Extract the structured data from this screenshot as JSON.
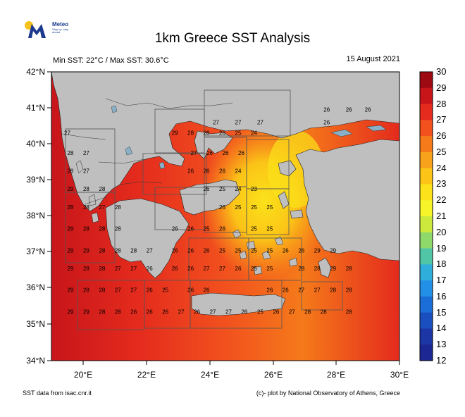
{
  "logo": {
    "name": "Meteo",
    "tagline": "Stay up, stay ahead",
    "icon": "meteo-m-logo"
  },
  "title": "1km Greece SST Analysis",
  "subtitle_left": "Min SST: 22°C / Max SST: 30.6°C",
  "date": "15 August 2021",
  "footer_left": "SST data from isac.cnr.it",
  "footer_right": "(c)- plot by National Observatory of Athens, Greece",
  "y_axis": {
    "labels": [
      "42°N",
      "41°N",
      "40°N",
      "39°N",
      "38°N",
      "37°N",
      "36°N",
      "35°N",
      "34°N"
    ],
    "range": [
      34,
      42
    ]
  },
  "x_axis": {
    "labels": [
      "20°E",
      "22°E",
      "24°E",
      "26°E",
      "28°E",
      "30°E"
    ],
    "range": [
      19,
      30
    ]
  },
  "colorbar": {
    "labels": [
      "30",
      "29",
      "28",
      "27",
      "26",
      "25",
      "24",
      "23",
      "22",
      "21",
      "20",
      "19",
      "18",
      "17",
      "16",
      "15",
      "14",
      "13",
      "12"
    ],
    "range": [
      12,
      30
    ],
    "colors": [
      "#9e0a12",
      "#c8151a",
      "#e42b1d",
      "#f2511e",
      "#f57a1a",
      "#f8a11a",
      "#fbc417",
      "#fbe21a",
      "#f5f52a",
      "#cdea3c",
      "#8fd96a",
      "#50c6a6",
      "#2faedb",
      "#2290e6",
      "#1b6ed8",
      "#1a4fc0",
      "#1c36a6",
      "#1d2793",
      "#1d1d84"
    ]
  },
  "land_color": "#bfbfbf",
  "sea_label_rows": [
    {
      "lat": 40.25,
      "cells": [
        {
          "lon": 19.5,
          "v": "27"
        },
        {
          "lon": 22.9,
          "v": "29"
        },
        {
          "lon": 23.4,
          "v": "28"
        },
        {
          "lon": 23.9,
          "v": "28"
        },
        {
          "lon": 24.4,
          "v": "26"
        },
        {
          "lon": 24.9,
          "v": "25"
        },
        {
          "lon": 25.4,
          "v": "24"
        }
      ]
    },
    {
      "lat": 40.55,
      "cells": [
        {
          "lon": 24.2,
          "v": "27"
        },
        {
          "lon": 24.9,
          "v": "27"
        },
        {
          "lon": 25.6,
          "v": "27"
        },
        {
          "lon": 27.7,
          "v": "26"
        }
      ]
    },
    {
      "lat": 40.9,
      "cells": [
        {
          "lon": 27.7,
          "v": "26"
        },
        {
          "lon": 28.4,
          "v": "26"
        },
        {
          "lon": 29.0,
          "v": "26"
        }
      ]
    },
    {
      "lat": 39.7,
      "cells": [
        {
          "lon": 19.6,
          "v": "28"
        },
        {
          "lon": 20.1,
          "v": "27"
        },
        {
          "lon": 23.5,
          "v": "27"
        },
        {
          "lon": 24.0,
          "v": "26"
        },
        {
          "lon": 24.5,
          "v": "26"
        },
        {
          "lon": 25.0,
          "v": "26"
        }
      ]
    },
    {
      "lat": 39.2,
      "cells": [
        {
          "lon": 19.6,
          "v": "28"
        },
        {
          "lon": 20.1,
          "v": "27"
        },
        {
          "lon": 23.4,
          "v": "26"
        },
        {
          "lon": 23.9,
          "v": "26"
        },
        {
          "lon": 24.4,
          "v": "26"
        },
        {
          "lon": 24.9,
          "v": "24"
        }
      ]
    },
    {
      "lat": 38.7,
      "cells": [
        {
          "lon": 19.6,
          "v": "29"
        },
        {
          "lon": 20.1,
          "v": "28"
        },
        {
          "lon": 20.6,
          "v": "28"
        },
        {
          "lon": 23.9,
          "v": "26"
        },
        {
          "lon": 24.4,
          "v": "25"
        },
        {
          "lon": 24.9,
          "v": "24"
        },
        {
          "lon": 25.4,
          "v": "23"
        }
      ]
    },
    {
      "lat": 38.2,
      "cells": [
        {
          "lon": 19.6,
          "v": "28"
        },
        {
          "lon": 20.1,
          "v": "28"
        },
        {
          "lon": 20.6,
          "v": "27"
        },
        {
          "lon": 21.1,
          "v": "28"
        },
        {
          "lon": 24.4,
          "v": "26"
        },
        {
          "lon": 24.9,
          "v": "25"
        },
        {
          "lon": 25.4,
          "v": "25"
        },
        {
          "lon": 25.9,
          "v": "25"
        }
      ]
    },
    {
      "lat": 37.6,
      "cells": [
        {
          "lon": 19.6,
          "v": "29"
        },
        {
          "lon": 20.1,
          "v": "28"
        },
        {
          "lon": 20.6,
          "v": "28"
        },
        {
          "lon": 21.1,
          "v": "28"
        },
        {
          "lon": 22.9,
          "v": "26"
        },
        {
          "lon": 23.4,
          "v": "26"
        },
        {
          "lon": 23.9,
          "v": "25"
        },
        {
          "lon": 24.4,
          "v": "26"
        },
        {
          "lon": 25.4,
          "v": "25"
        },
        {
          "lon": 25.9,
          "v": "25"
        }
      ]
    },
    {
      "lat": 37.0,
      "cells": [
        {
          "lon": 19.6,
          "v": "29"
        },
        {
          "lon": 20.1,
          "v": "29"
        },
        {
          "lon": 20.6,
          "v": "28"
        },
        {
          "lon": 21.1,
          "v": "28"
        },
        {
          "lon": 21.6,
          "v": "28"
        },
        {
          "lon": 22.1,
          "v": "27"
        },
        {
          "lon": 22.9,
          "v": "26"
        },
        {
          "lon": 23.4,
          "v": "26"
        },
        {
          "lon": 23.9,
          "v": "26"
        },
        {
          "lon": 24.4,
          "v": "25"
        },
        {
          "lon": 24.9,
          "v": "25"
        },
        {
          "lon": 25.4,
          "v": "25"
        },
        {
          "lon": 25.9,
          "v": "25"
        },
        {
          "lon": 26.4,
          "v": "26"
        },
        {
          "lon": 26.9,
          "v": "26"
        },
        {
          "lon": 27.4,
          "v": "29"
        },
        {
          "lon": 27.9,
          "v": "29"
        }
      ]
    },
    {
      "lat": 36.5,
      "cells": [
        {
          "lon": 19.6,
          "v": "29"
        },
        {
          "lon": 20.1,
          "v": "28"
        },
        {
          "lon": 20.6,
          "v": "28"
        },
        {
          "lon": 21.1,
          "v": "27"
        },
        {
          "lon": 21.6,
          "v": "27"
        },
        {
          "lon": 22.1,
          "v": "26"
        },
        {
          "lon": 22.9,
          "v": "26"
        },
        {
          "lon": 23.4,
          "v": "26"
        },
        {
          "lon": 23.9,
          "v": "27"
        },
        {
          "lon": 24.4,
          "v": "27"
        },
        {
          "lon": 24.9,
          "v": "26"
        },
        {
          "lon": 25.4,
          "v": "25"
        },
        {
          "lon": 25.9,
          "v": "25"
        },
        {
          "lon": 26.9,
          "v": "28"
        },
        {
          "lon": 27.4,
          "v": "28"
        },
        {
          "lon": 27.9,
          "v": "29"
        },
        {
          "lon": 28.4,
          "v": "28"
        }
      ]
    },
    {
      "lat": 35.9,
      "cells": [
        {
          "lon": 19.6,
          "v": "29"
        },
        {
          "lon": 20.1,
          "v": "28"
        },
        {
          "lon": 20.6,
          "v": "28"
        },
        {
          "lon": 21.1,
          "v": "27"
        },
        {
          "lon": 21.6,
          "v": "27"
        },
        {
          "lon": 22.1,
          "v": "26"
        },
        {
          "lon": 22.6,
          "v": "25"
        },
        {
          "lon": 23.4,
          "v": "26"
        },
        {
          "lon": 23.9,
          "v": "26"
        },
        {
          "lon": 25.9,
          "v": "26"
        },
        {
          "lon": 26.4,
          "v": "26"
        },
        {
          "lon": 26.9,
          "v": "27"
        },
        {
          "lon": 27.4,
          "v": "27"
        },
        {
          "lon": 27.9,
          "v": "28"
        },
        {
          "lon": 28.4,
          "v": "28"
        }
      ]
    },
    {
      "lat": 35.3,
      "cells": [
        {
          "lon": 19.6,
          "v": "29"
        },
        {
          "lon": 20.1,
          "v": "29"
        },
        {
          "lon": 20.6,
          "v": "28"
        },
        {
          "lon": 21.1,
          "v": "28"
        },
        {
          "lon": 21.6,
          "v": "26"
        },
        {
          "lon": 22.1,
          "v": "26"
        },
        {
          "lon": 22.6,
          "v": "26"
        },
        {
          "lon": 23.1,
          "v": "27"
        },
        {
          "lon": 23.6,
          "v": "26"
        },
        {
          "lon": 24.1,
          "v": "27"
        },
        {
          "lon": 24.6,
          "v": "27"
        },
        {
          "lon": 25.1,
          "v": "26"
        },
        {
          "lon": 25.6,
          "v": "25"
        },
        {
          "lon": 26.1,
          "v": "26"
        },
        {
          "lon": 26.6,
          "v": "27"
        },
        {
          "lon": 27.1,
          "v": "28"
        },
        {
          "lon": 27.6,
          "v": "28"
        },
        {
          "lon": 28.4,
          "v": "28"
        }
      ]
    }
  ]
}
